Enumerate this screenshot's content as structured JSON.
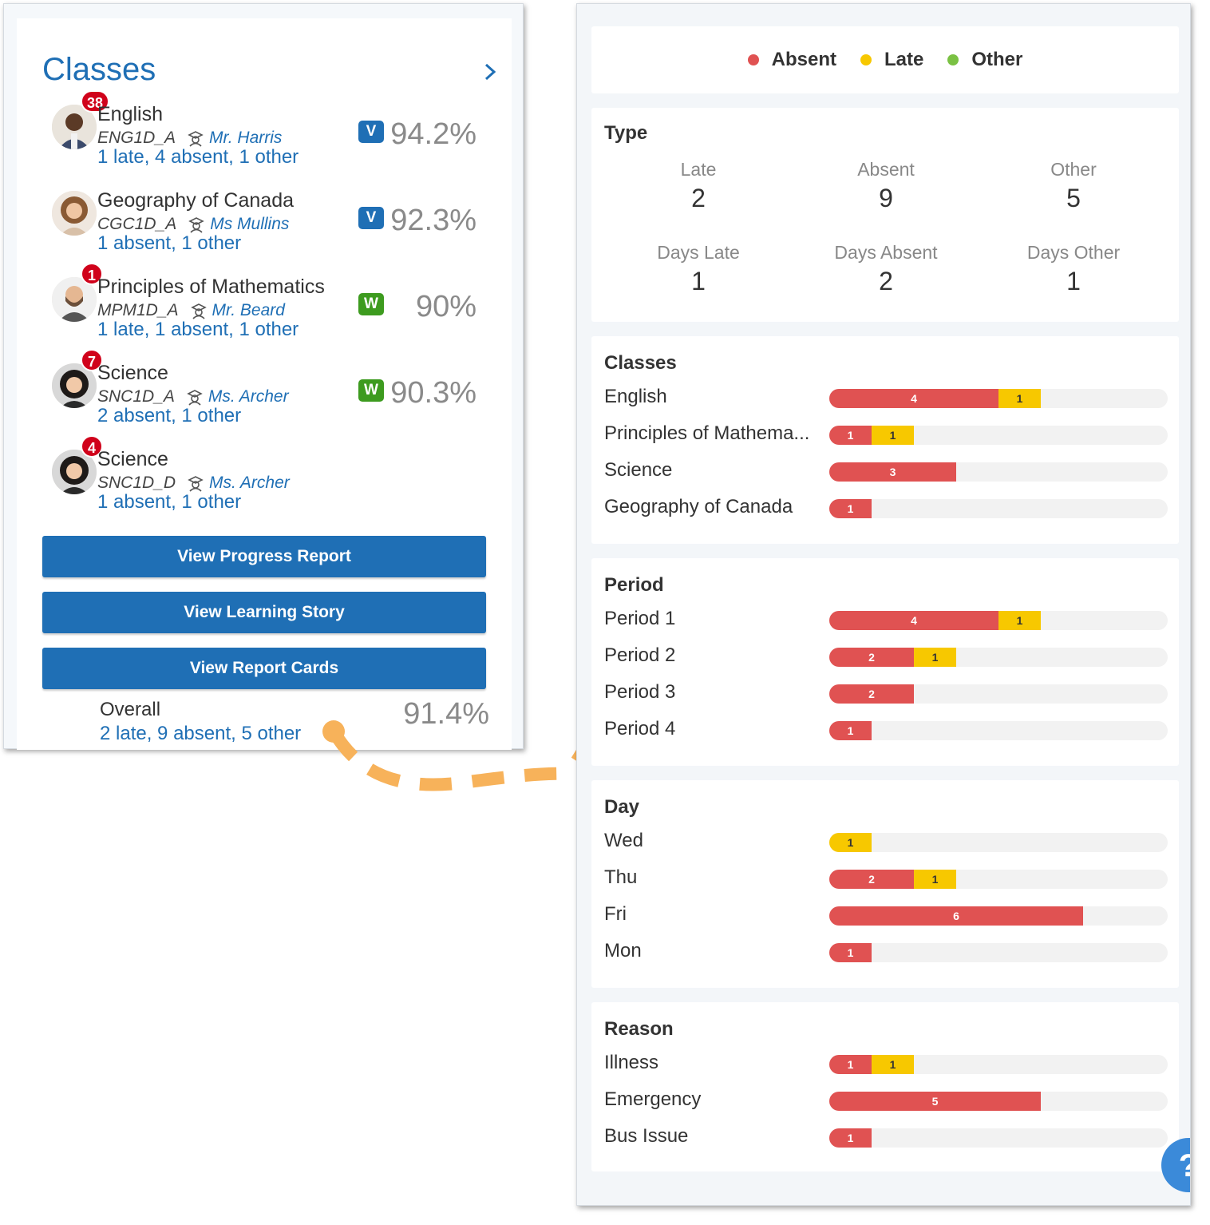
{
  "classes_panel": {
    "title": "Classes",
    "classes": [
      {
        "name": "English",
        "code": "ENG1D_A",
        "teacher": "Mr. Harris",
        "attendance": "1 late, 4 absent, 1 other",
        "badge": "38",
        "grade_tag": "V",
        "grade": "94.2%",
        "avatar": "man-dark-avatar"
      },
      {
        "name": "Geography of Canada",
        "code": "CGC1D_A",
        "teacher": "Ms Mullins",
        "attendance": "1 absent, 1 other",
        "badge": "",
        "grade_tag": "V",
        "grade": "92.3%",
        "avatar": "woman-curly-avatar"
      },
      {
        "name": "Principles of Mathematics",
        "code": "MPM1D_A",
        "teacher": "Mr. Beard",
        "attendance": "1 late, 1 absent, 1 other",
        "badge": "1",
        "grade_tag": "W",
        "grade": "90%",
        "avatar": "man-beard-avatar"
      },
      {
        "name": "Science",
        "code": "SNC1D_A",
        "teacher": "Ms. Archer",
        "attendance": "2 absent, 1 other",
        "badge": "7",
        "grade_tag": "W",
        "grade": "90.3%",
        "avatar": "woman-dark-hair-avatar"
      },
      {
        "name": "Science",
        "code": "SNC1D_D",
        "teacher": "Ms. Archer",
        "attendance": "1 absent, 1 other",
        "badge": "4",
        "grade_tag": "",
        "grade": "",
        "avatar": "woman-dark-hair-avatar"
      }
    ],
    "buttons": {
      "progress": "View Progress Report",
      "learning": "View Learning Story",
      "report_cards": "View Report Cards"
    },
    "overall": {
      "label": "Overall",
      "attendance": "2 late, 9 absent, 5 other",
      "grade": "91.4%"
    }
  },
  "colors": {
    "absent": "#e05252",
    "late": "#f7c800",
    "other": "#7ac143",
    "accent": "#1f6fb5"
  },
  "legend": {
    "absent": "Absent",
    "late": "Late",
    "other": "Other"
  },
  "type": {
    "title": "Type",
    "stats": [
      {
        "label": "Late",
        "value": "2"
      },
      {
        "label": "Absent",
        "value": "9"
      },
      {
        "label": "Other",
        "value": "5"
      },
      {
        "label": "Days Late",
        "value": "1"
      },
      {
        "label": "Days Absent",
        "value": "2"
      },
      {
        "label": "Days Other",
        "value": "1"
      }
    ]
  },
  "scale_max": 8,
  "sections": {
    "classes": {
      "title": "Classes",
      "rows": [
        {
          "label": "English",
          "absent": 4,
          "late": 1
        },
        {
          "label": "Principles of Mathema...",
          "absent": 1,
          "late": 1
        },
        {
          "label": "Science",
          "absent": 3,
          "late": 0
        },
        {
          "label": "Geography of Canada",
          "absent": 1,
          "late": 0
        }
      ]
    },
    "period": {
      "title": "Period",
      "rows": [
        {
          "label": "Period 1",
          "absent": 4,
          "late": 1
        },
        {
          "label": "Period 2",
          "absent": 2,
          "late": 1
        },
        {
          "label": "Period 3",
          "absent": 2,
          "late": 0
        },
        {
          "label": "Period 4",
          "absent": 1,
          "late": 0
        }
      ]
    },
    "day": {
      "title": "Day",
      "rows": [
        {
          "label": "Wed",
          "absent": 0,
          "late": 1
        },
        {
          "label": "Thu",
          "absent": 2,
          "late": 1
        },
        {
          "label": "Fri",
          "absent": 6,
          "late": 0
        },
        {
          "label": "Mon",
          "absent": 1,
          "late": 0
        }
      ]
    },
    "reason": {
      "title": "Reason",
      "rows": [
        {
          "label": "Illness",
          "absent": 1,
          "late": 1
        },
        {
          "label": "Emergency",
          "absent": 5,
          "late": 0
        },
        {
          "label": "Bus Issue",
          "absent": 1,
          "late": 0
        }
      ]
    }
  },
  "help": {
    "label": "?"
  }
}
